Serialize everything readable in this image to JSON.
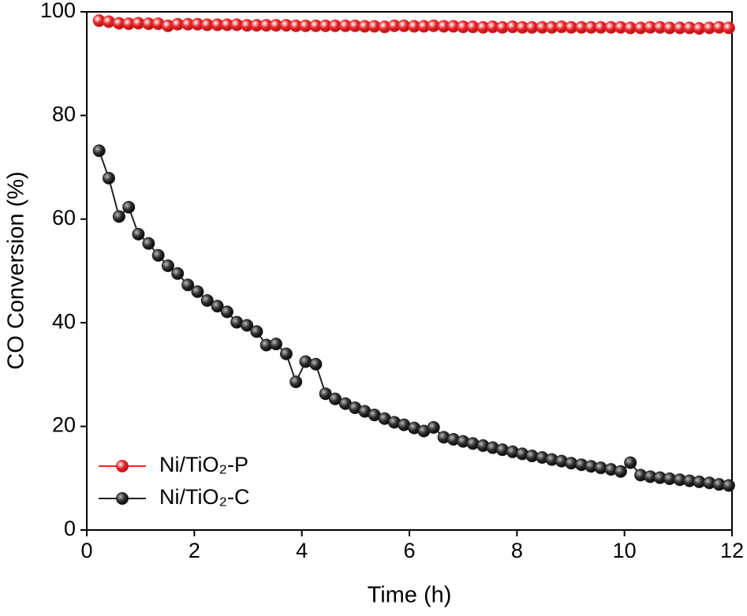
{
  "chart_data": {
    "type": "line",
    "xlabel": "Time (h)",
    "ylabel": "CO Conversion (%)",
    "x": [
      0.23,
      0.41,
      0.6,
      0.78,
      0.96,
      1.15,
      1.33,
      1.51,
      1.69,
      1.88,
      2.06,
      2.24,
      2.43,
      2.61,
      2.79,
      2.98,
      3.16,
      3.34,
      3.52,
      3.71,
      3.89,
      4.07,
      4.26,
      4.44,
      4.62,
      4.81,
      4.99,
      5.17,
      5.35,
      5.54,
      5.72,
      5.9,
      6.09,
      6.27,
      6.45,
      6.64,
      6.82,
      7.0,
      7.18,
      7.37,
      7.55,
      7.73,
      7.92,
      8.1,
      8.28,
      8.47,
      8.65,
      8.83,
      9.01,
      9.2,
      9.38,
      9.56,
      9.75,
      9.93,
      10.11,
      10.3,
      10.48,
      10.66,
      10.84,
      11.03,
      11.21,
      11.39,
      11.58,
      11.76,
      11.94
    ],
    "series": [
      {
        "name": "Ni/TiO₂-P",
        "color": "#e8262a",
        "values": [
          98.3,
          98.1,
          97.8,
          97.7,
          97.8,
          97.7,
          97.7,
          97.3,
          97.6,
          97.6,
          97.6,
          97.5,
          97.5,
          97.5,
          97.5,
          97.4,
          97.4,
          97.4,
          97.4,
          97.4,
          97.3,
          97.3,
          97.3,
          97.3,
          97.3,
          97.3,
          97.3,
          97.2,
          97.2,
          97.1,
          97.3,
          97.3,
          97.2,
          97.2,
          97.3,
          97.2,
          97.2,
          97.1,
          97.1,
          97.0,
          97.1,
          97.0,
          97.1,
          97.0,
          97.0,
          97.0,
          97.0,
          97.1,
          97.0,
          97.0,
          97.0,
          97.0,
          97.0,
          97.0,
          96.9,
          96.9,
          97.0,
          97.0,
          96.9,
          96.9,
          96.9,
          96.8,
          96.9,
          97.0,
          96.9
        ]
      },
      {
        "name": "Ni/TiO₂-C",
        "color": "#222222",
        "values": [
          73.2,
          67.9,
          60.5,
          62.3,
          57.1,
          55.3,
          53.0,
          51.0,
          49.5,
          47.3,
          46.0,
          44.3,
          43.2,
          42.1,
          40.1,
          39.5,
          38.3,
          35.7,
          35.9,
          34.0,
          28.6,
          32.5,
          32.0,
          26.3,
          25.3,
          24.4,
          23.6,
          22.9,
          22.2,
          21.5,
          20.8,
          20.3,
          19.7,
          19.1,
          19.8,
          17.9,
          17.5,
          17.1,
          16.7,
          16.3,
          15.9,
          15.5,
          15.1,
          14.7,
          14.3,
          14.0,
          13.6,
          13.3,
          12.9,
          12.6,
          12.3,
          12.0,
          11.7,
          11.3,
          13.0,
          10.6,
          10.3,
          10.1,
          9.9,
          9.7,
          9.5,
          9.3,
          9.1,
          8.8,
          8.6
        ]
      }
    ],
    "xlim": [
      0,
      12
    ],
    "xticks": [
      0,
      2,
      4,
      6,
      8,
      10,
      12
    ],
    "ylim": [
      0,
      100
    ],
    "yticks": [
      0,
      20,
      40,
      60,
      80,
      100
    ],
    "legend": "lower left",
    "grid": false
  }
}
